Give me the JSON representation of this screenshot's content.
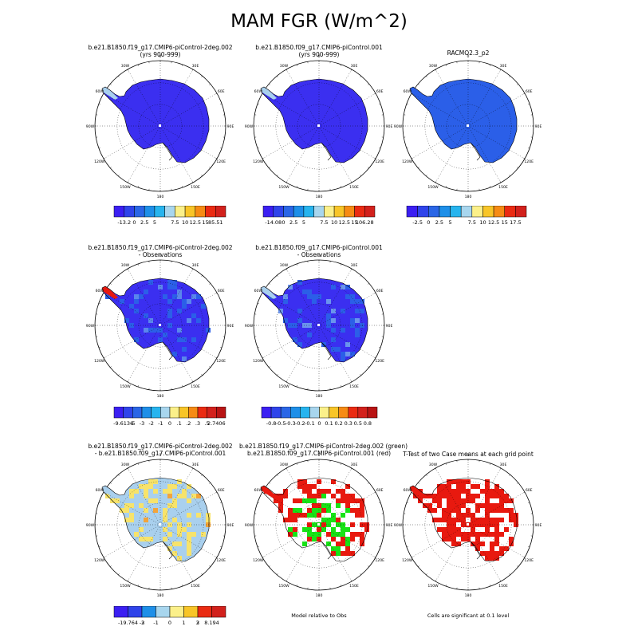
{
  "title": "MAM FGR (W/m^2)",
  "colors": {
    "ocean_bg": "#ffffff",
    "low_blue": "#3b2ff0",
    "mid_blue": "#2b5fe8",
    "light_blue": "#a9d0ee",
    "pale_yellow": "#f7e36b",
    "red": "#e8190f",
    "green": "#18e316",
    "coast": "#000000"
  },
  "lon_labels": [
    "0",
    "30E",
    "60E",
    "90E",
    "120E",
    "150E",
    "180",
    "150W",
    "120W",
    "90W",
    "60W",
    "30W"
  ],
  "panels": [
    {
      "title_lines": [
        "b.e21.B1850.f19_g17.CMIP6-piControl-2deg.002",
        "(yrs 900-999)"
      ],
      "fill": "low_blue",
      "peninsula": "light_blue",
      "pattern": "none"
    },
    {
      "title_lines": [
        "b.e21.B1850.f09_g17.CMIP6-piControl.001",
        "(yrs 900-999)"
      ],
      "fill": "low_blue",
      "peninsula": "light_blue",
      "pattern": "none"
    },
    {
      "title_lines": [
        "",
        "RACMO2.3_p2"
      ],
      "fill": "mid_blue",
      "peninsula": "mid_blue",
      "pattern": "none"
    },
    {
      "title_lines": [
        "b.e21.B1850.f19_g17.CMIP6-piControl-2deg.002",
        "- Observations"
      ],
      "fill": "low_blue",
      "peninsula": "red",
      "pattern": "bias"
    },
    {
      "title_lines": [
        "b.e21.B1850.f09_g17.CMIP6-piControl.001",
        "- Observations"
      ],
      "fill": "low_blue",
      "peninsula": "light_blue",
      "pattern": "bias2"
    },
    {
      "title_lines": [
        "b.e21.B1850.f19_g17.CMIP6-piControl-2deg.002",
        "- b.e21.B1850.f09_g17.CMIP6-piControl.001"
      ],
      "fill": "light_blue",
      "peninsula": "light_blue",
      "pattern": "diff"
    },
    {
      "title_lines": [
        "b.e21.B1850.f19_g17.CMIP6-piControl-2deg.002 (green)",
        "b.e21.B1850.f09_g17.CMIP6-piControl.001 (red)"
      ],
      "fill": "white",
      "peninsula": "red",
      "pattern": "redgreen"
    },
    {
      "title_lines": [
        "T-Test of two Case means at each grid point",
        ""
      ],
      "fill": "white",
      "peninsula": "red",
      "pattern": "ttest"
    }
  ],
  "colorbars": [
    {
      "labels": [
        "-13.2",
        "0",
        "2.5",
        "5",
        "7.5",
        "10",
        "12.5",
        "15",
        "85.51"
      ],
      "colors": [
        "#3b1ff2",
        "#2f44ea",
        "#2a66e6",
        "#1e8fe8",
        "#27b4ee",
        "#a8d6ee",
        "#fbf08a",
        "#f8c528",
        "#f68b14",
        "#ea2b12",
        "#d2211c"
      ]
    },
    {
      "labels": [
        "-14.08",
        "0",
        "2.5",
        "5",
        "7.5",
        "10",
        "12.5",
        "15",
        "106.28"
      ],
      "colors": [
        "#3b1ff2",
        "#2f44ea",
        "#2a66e6",
        "#1e8fe8",
        "#27b4ee",
        "#a8d6ee",
        "#fbf08a",
        "#f8c528",
        "#f68b14",
        "#ea2b12",
        "#d2211c"
      ]
    },
    {
      "labels": [
        "-2.5",
        "0",
        "2.5",
        "5",
        "7.5",
        "10",
        "12.5",
        "15",
        "17.5"
      ],
      "colors": [
        "#3b1ff2",
        "#2f44ea",
        "#2a66e6",
        "#1e8fe8",
        "#27b4ee",
        "#a8d6ee",
        "#fbf08a",
        "#f8c528",
        "#f68b14",
        "#ea2b12",
        "#d2211c"
      ]
    },
    {
      "labels": [
        "-9.6136",
        "-5",
        "-3",
        "-2",
        "-1",
        "0",
        ".1",
        ".2",
        ".3",
        ".5",
        "2.7406"
      ],
      "colors": [
        "#3b1ff2",
        "#2f44ea",
        "#2a66e6",
        "#1e8fe8",
        "#27b4ee",
        "#a8d6ee",
        "#fbf08a",
        "#f8c528",
        "#f68b14",
        "#ea2b12",
        "#d2211c",
        "#b81414"
      ]
    },
    {
      "labels": [
        "-0.8",
        "-0.5",
        "-0.3",
        "-0.2",
        "-0.1",
        "0",
        "0.1",
        "0.2",
        "0.3",
        "0.5",
        "0.8"
      ],
      "colors": [
        "#3b1ff2",
        "#2f44ea",
        "#2a66e6",
        "#1e8fe8",
        "#27b4ee",
        "#a8d6ee",
        "#fbf08a",
        "#f8c528",
        "#f68b14",
        "#ea2b12",
        "#d2211c",
        "#b81414"
      ]
    },
    {
      "labels": [
        "-19.764",
        "-3",
        "-2",
        "-1",
        "0",
        "1",
        "2",
        "3",
        "8.194"
      ],
      "colors": [
        "#3b1ff2",
        "#2f44ea",
        "#1e8fe8",
        "#a8d6ee",
        "#fbf08a",
        "#f8c528",
        "#ea2b12",
        "#d2211c"
      ]
    }
  ],
  "notes": [
    "Model relative to Obs",
    "Cells are significant at 0.1 level"
  ],
  "chart_data": {
    "type": "heatmap",
    "title": "MAM FGR (W/m^2)",
    "projection": "south polar stereographic",
    "panels": [
      {
        "name": "b.e21.B1850.f19_g17.CMIP6-piControl-2deg.002 (yrs 900-999)",
        "range": [
          -13.2,
          85.51
        ]
      },
      {
        "name": "b.e21.B1850.f09_g17.CMIP6-piControl.001 (yrs 900-999)",
        "range": [
          -14.08,
          106.28
        ]
      },
      {
        "name": "RACMO2.3_p2",
        "range": [
          -2.5,
          17.5
        ]
      },
      {
        "name": "b.e21.B1850.f19_g17.CMIP6-piControl-2deg.002 - Observations",
        "range": [
          -9.6136,
          2.7406
        ]
      },
      {
        "name": "b.e21.B1850.f09_g17.CMIP6-piControl.001 - Observations",
        "range": [
          -0.8,
          0.8
        ]
      },
      {
        "name": "b.e21.B1850.f19_g17.CMIP6-piControl-2deg.002 - b.e21.B1850.f09_g17.CMIP6-piControl.001",
        "range": [
          -19.764,
          8.194
        ]
      },
      {
        "name": "Model relative to Obs",
        "legend": [
          "b.e21.B1850.f19_g17.CMIP6-piControl-2deg.002 (green)",
          "b.e21.B1850.f09_g17.CMIP6-piControl.001 (red)"
        ]
      },
      {
        "name": "T-Test of two Case means at each grid point",
        "note": "Cells are significant at 0.1 level"
      }
    ]
  }
}
